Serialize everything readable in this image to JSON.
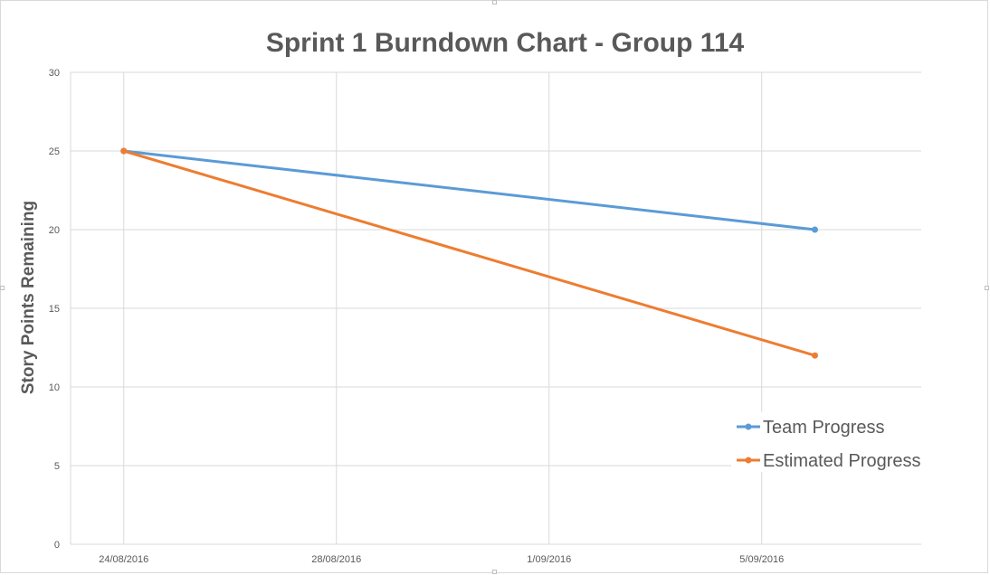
{
  "chart_data": {
    "type": "line",
    "title": "Sprint 1 Burndown Chart - Group 114",
    "xlabel": "",
    "ylabel": "Story Points Remaining",
    "x_ticks": [
      "24/08/2016",
      "28/08/2016",
      "1/09/2016",
      "5/09/2016"
    ],
    "y_ticks": [
      "0",
      "5",
      "10",
      "15",
      "20",
      "25",
      "30"
    ],
    "xlim": [
      "2016-08-23",
      "2016-09-08"
    ],
    "ylim": [
      0,
      30
    ],
    "grid": true,
    "legend_position": "bottom-right",
    "series": [
      {
        "name": "Team Progress",
        "color": "#5b9bd5",
        "points": [
          {
            "x": "2016-08-24",
            "y": 25
          },
          {
            "x": "2016-09-06",
            "y": 20
          }
        ]
      },
      {
        "name": "Estimated Progress",
        "color": "#ed7d31",
        "points": [
          {
            "x": "2016-08-24",
            "y": 25
          },
          {
            "x": "2016-09-06",
            "y": 12
          }
        ]
      }
    ]
  }
}
